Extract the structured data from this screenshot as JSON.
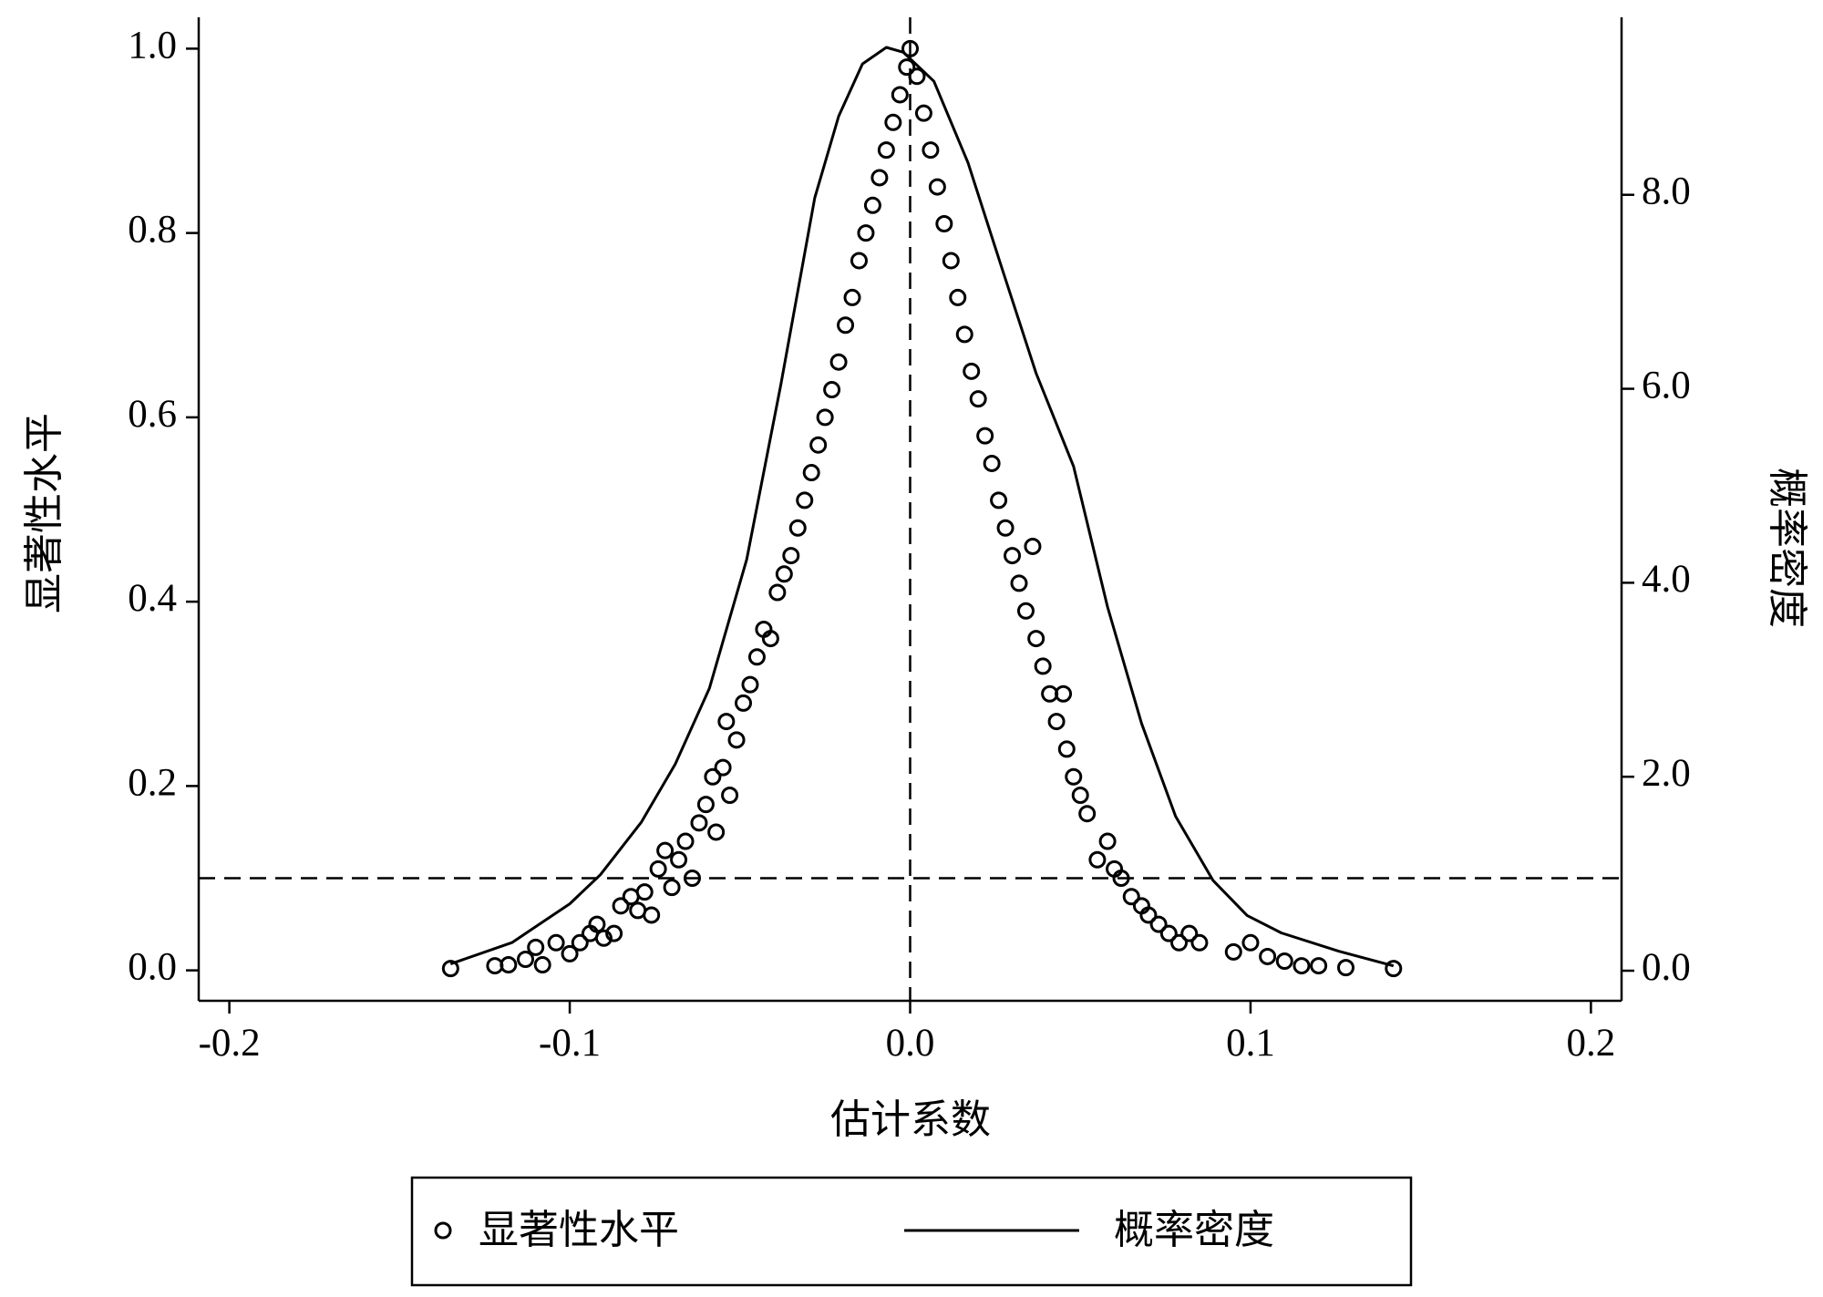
{
  "chart_data": {
    "type": "scatter",
    "x_label": "估计系数",
    "y_label": "显著性水平",
    "y2_label": "概率密度",
    "xlim": [
      -0.209,
      0.209
    ],
    "ylim": [
      -0.033,
      1.034
    ],
    "y2lim": [
      -0.31,
      9.83
    ],
    "xticks": [
      -0.2,
      -0.1,
      {
        "value": 0,
        "label": "0.0"
      },
      0.1,
      0.2
    ],
    "yticks": [
      {
        "value": 0,
        "label": "0.0"
      },
      0.2,
      0.4,
      0.6,
      0.8,
      {
        "value": 1,
        "label": "1.0"
      }
    ],
    "y2ticks": [
      {
        "value": 0,
        "label": "0.0"
      },
      {
        "value": 2,
        "label": "2.0"
      },
      {
        "value": 4,
        "label": "4.0"
      },
      {
        "value": 6,
        "label": "6.0"
      },
      {
        "value": 8,
        "label": "8.0"
      }
    ],
    "vline": 0,
    "hline": 0.1,
    "series": [
      {
        "name": "显著性水平",
        "type": "scatter",
        "color": "#000000",
        "x": [
          -0.135,
          -0.122,
          -0.118,
          -0.113,
          -0.11,
          -0.108,
          -0.104,
          -0.1,
          -0.097,
          -0.094,
          -0.092,
          -0.09,
          -0.087,
          -0.085,
          -0.082,
          -0.08,
          -0.078,
          -0.076,
          -0.074,
          -0.072,
          -0.07,
          -0.068,
          -0.066,
          -0.064,
          -0.062,
          -0.06,
          -0.058,
          -0.057,
          -0.055,
          -0.054,
          -0.053,
          -0.051,
          -0.049,
          -0.047,
          -0.045,
          -0.043,
          -0.041,
          -0.039,
          -0.037,
          -0.035,
          -0.033,
          -0.031,
          -0.029,
          -0.027,
          -0.025,
          -0.023,
          -0.021,
          -0.019,
          -0.017,
          -0.015,
          -0.013,
          -0.011,
          -0.009,
          -0.007,
          -0.005,
          -0.003,
          -0.001,
          0,
          0.002,
          0.004,
          0.006,
          0.008,
          0.01,
          0.012,
          0.014,
          0.016,
          0.018,
          0.02,
          0.022,
          0.024,
          0.026,
          0.028,
          0.03,
          0.032,
          0.034,
          0.036,
          0.037,
          0.039,
          0.041,
          0.043,
          0.045,
          0.046,
          0.048,
          0.05,
          0.052,
          0.055,
          0.058,
          0.06,
          0.062,
          0.065,
          0.068,
          0.07,
          0.073,
          0.076,
          0.079,
          0.082,
          0.085,
          0.095,
          0.1,
          0.105,
          0.11,
          0.115,
          0.12,
          0.128,
          0.142
        ],
        "values": [
          0.002,
          0.005,
          0.006,
          0.012,
          0.025,
          0.006,
          0.03,
          0.018,
          0.03,
          0.04,
          0.05,
          0.035,
          0.04,
          0.07,
          0.08,
          0.065,
          0.085,
          0.06,
          0.11,
          0.13,
          0.09,
          0.12,
          0.14,
          0.1,
          0.16,
          0.18,
          0.21,
          0.15,
          0.22,
          0.27,
          0.19,
          0.25,
          0.29,
          0.31,
          0.34,
          0.37,
          0.36,
          0.41,
          0.43,
          0.45,
          0.48,
          0.51,
          0.54,
          0.57,
          0.6,
          0.63,
          0.66,
          0.7,
          0.73,
          0.77,
          0.8,
          0.83,
          0.86,
          0.89,
          0.92,
          0.95,
          0.98,
          1.0,
          0.97,
          0.93,
          0.89,
          0.85,
          0.81,
          0.77,
          0.73,
          0.69,
          0.65,
          0.62,
          0.58,
          0.55,
          0.51,
          0.48,
          0.45,
          0.42,
          0.39,
          0.46,
          0.36,
          0.33,
          0.3,
          0.27,
          0.3,
          0.24,
          0.21,
          0.19,
          0.17,
          0.12,
          0.14,
          0.11,
          0.1,
          0.08,
          0.07,
          0.06,
          0.05,
          0.04,
          0.03,
          0.04,
          0.03,
          0.02,
          0.03,
          0.015,
          0.01,
          0.005,
          0.005,
          0.003,
          0.002
        ]
      },
      {
        "name": "概率密度",
        "type": "line",
        "axis": "y2",
        "color": "#000000",
        "x": [
          -0.135,
          -0.117,
          -0.1,
          -0.091,
          -0.079,
          -0.069,
          -0.059,
          -0.048,
          -0.038,
          -0.028,
          -0.021,
          -0.014,
          -0.007,
          -0.002,
          0.007,
          0.017,
          0.027,
          0.037,
          0.048,
          0.058,
          0.068,
          0.078,
          0.089,
          0.099,
          0.109,
          0.126,
          0.142
        ],
        "values": [
          0.07,
          0.29,
          0.69,
          0.99,
          1.53,
          2.13,
          2.91,
          4.24,
          6.04,
          7.97,
          8.81,
          9.35,
          9.52,
          9.47,
          9.17,
          8.33,
          7.24,
          6.16,
          5.2,
          3.75,
          2.55,
          1.59,
          0.93,
          0.57,
          0.39,
          0.2,
          0.05
        ]
      }
    ]
  }
}
